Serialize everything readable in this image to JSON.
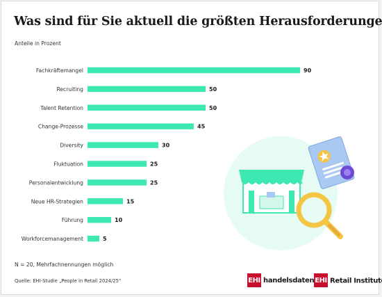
{
  "title": "Was sind für Sie aktuell die größten Herausforderungen?",
  "subtitle": "Anteile in Prozent",
  "note": "N = 20, Mehrfachnennungen möglich",
  "source": "Quelle: EHI-Studie „People in Retail 2024/25“",
  "logos": {
    "ehi_mark": "EHI",
    "handelsdaten": "handelsdaten.de",
    "retail_institute": "Retail Institute",
    "registered": "®"
  },
  "colors": {
    "bar": "#3ee8b3",
    "illustration_bg": "#e6fbf3",
    "accent_blue": "#a9c8f2",
    "magnifier": "#f4c542",
    "brand_red": "#c8102e"
  },
  "chart_data": {
    "type": "bar",
    "orientation": "horizontal",
    "categories": [
      "Fachkräftemangel",
      "Recruiting",
      "Talent Retention",
      "Change-Prozesse",
      "Diversity",
      "Fluktuation",
      "Personalentwicklung",
      "Neue HR-Strategien",
      "Führung",
      "Workforcemanagement"
    ],
    "values": [
      90,
      50,
      50,
      45,
      30,
      25,
      25,
      15,
      10,
      5
    ],
    "xlim": [
      0,
      100
    ],
    "grid": false
  }
}
